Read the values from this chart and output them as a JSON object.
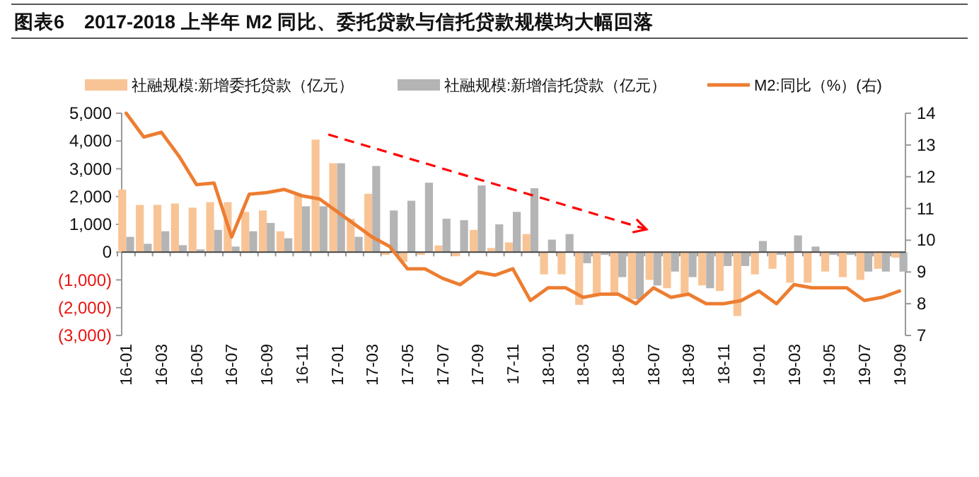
{
  "chart_data": {
    "type": "bar",
    "title": "图表6　2017-2018 上半年 M2 同比、委托贷款与信托贷款规模均大幅回落",
    "categories": [
      "16-01",
      null,
      "16-03",
      null,
      "16-05",
      null,
      "16-07",
      null,
      "16-09",
      null,
      "16-11",
      null,
      "17-01",
      null,
      "17-03",
      null,
      "17-05",
      null,
      "17-07",
      null,
      "17-09",
      null,
      "17-11",
      null,
      "18-01",
      null,
      "18-03",
      null,
      "18-05",
      null,
      "18-07",
      null,
      "18-09",
      null,
      "18-11",
      null,
      "19-01",
      null,
      "19-03",
      null,
      "19-05",
      null,
      "19-07",
      null,
      "19-09"
    ],
    "series": [
      {
        "name": "社融规模:新增委托贷款（亿元）",
        "color": "#f8c496",
        "values": [
          2250,
          1700,
          1700,
          1750,
          1600,
          1800,
          1800,
          1450,
          1500,
          750,
          2050,
          4050,
          3200,
          1200,
          2100,
          -100,
          -350,
          -100,
          240,
          -150,
          800,
          150,
          350,
          650,
          -800,
          -800,
          -1900,
          -1500,
          -1500,
          -1700,
          -1000,
          -1300,
          -1500,
          -1200,
          -1400,
          -2300,
          -800,
          -600,
          -1100,
          -1100,
          -700,
          -900,
          -1000,
          -600,
          -200
        ]
      },
      {
        "name": "社融规模:新增信托贷款（亿元）",
        "color": "#b4b4b4",
        "values": [
          550,
          300,
          750,
          250,
          100,
          800,
          200,
          750,
          1050,
          500,
          1650,
          1650,
          3200,
          550,
          3100,
          1500,
          1850,
          2500,
          1200,
          1150,
          2400,
          1000,
          1450,
          2300,
          450,
          650,
          -400,
          -100,
          -900,
          -1700,
          -1200,
          -700,
          -900,
          -1300,
          -500,
          -500,
          400,
          -100,
          600,
          200,
          -100,
          -100,
          -700,
          -700,
          -700
        ]
      },
      {
        "name": "M2:同比（%）(右)",
        "type": "line",
        "axis": "y2",
        "color": "#ed7d31",
        "values": [
          14.0,
          13.25,
          13.4,
          12.65,
          11.75,
          11.8,
          10.1,
          11.45,
          11.5,
          11.6,
          11.4,
          11.3,
          10.9,
          10.5,
          10.1,
          9.8,
          9.1,
          9.1,
          8.8,
          8.6,
          9.0,
          8.9,
          9.1,
          8.1,
          8.5,
          8.5,
          8.2,
          8.3,
          8.3,
          8.0,
          8.5,
          8.2,
          8.3,
          8.0,
          8.0,
          8.1,
          8.4,
          8.0,
          8.6,
          8.5,
          8.5,
          8.5,
          8.1,
          8.2,
          8.4
        ]
      }
    ],
    "ylim": [
      -3000,
      5000
    ],
    "yticks": [
      {
        "value": -3000,
        "label": "(3,000)"
      },
      {
        "value": -2000,
        "label": "(2,000)"
      },
      {
        "value": -1000,
        "label": "(1,000)"
      },
      0,
      {
        "value": 1000,
        "label": "1,000"
      },
      {
        "value": 2000,
        "label": "2,000"
      },
      {
        "value": 3000,
        "label": "3,000"
      },
      {
        "value": 4000,
        "label": "4,000"
      },
      {
        "value": 5000,
        "label": "5,000"
      }
    ],
    "y2lim": [
      7,
      14
    ],
    "y2ticks": [
      7,
      8,
      9,
      10,
      11,
      12,
      13,
      14
    ],
    "legend": "top"
  }
}
